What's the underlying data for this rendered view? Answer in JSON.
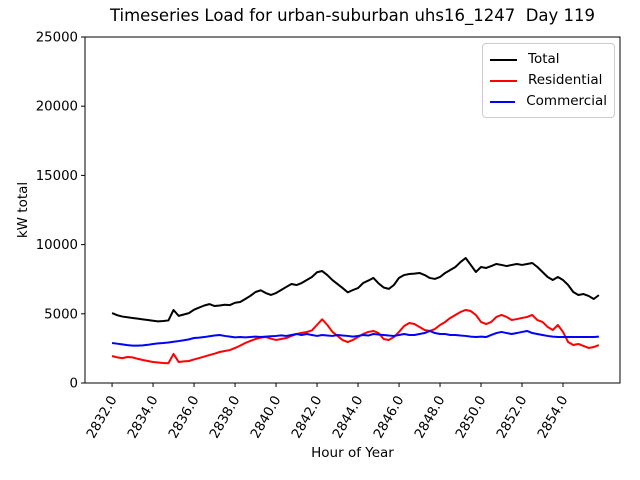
{
  "chart_data": {
    "type": "line",
    "title": "Timeseries Load for urban-suburban uhs16_1247  Day 119",
    "xlabel": "Hour of Year",
    "ylabel": "kW total",
    "xlim": [
      2830.68,
      2856.78
    ],
    "ylim": [
      0,
      25000
    ],
    "grid": false,
    "legend_position": "upper right",
    "xticks": [
      2832,
      2834,
      2836,
      2838,
      2840,
      2842,
      2844,
      2846,
      2848,
      2850,
      2852,
      2854
    ],
    "xtick_labels": [
      "2832.0",
      "2834.0",
      "2836.0",
      "2838.0",
      "2840.0",
      "2842.0",
      "2844.0",
      "2846.0",
      "2848.0",
      "2850.0",
      "2852.0",
      "2854.0"
    ],
    "xtick_rotation_deg": 60,
    "yticks": [
      0,
      5000,
      10000,
      15000,
      20000,
      25000
    ],
    "ytick_labels": [
      "0",
      "5000",
      "10000",
      "15000",
      "20000",
      "25000"
    ],
    "x": [
      2832.0,
      2832.25,
      2832.5,
      2832.75,
      2833.0,
      2833.25,
      2833.5,
      2833.75,
      2834.0,
      2834.25,
      2834.5,
      2834.75,
      2835.0,
      2835.25,
      2835.5,
      2835.75,
      2836.0,
      2836.25,
      2836.5,
      2836.75,
      2837.0,
      2837.25,
      2837.5,
      2837.75,
      2838.0,
      2838.25,
      2838.5,
      2838.75,
      2839.0,
      2839.25,
      2839.5,
      2839.75,
      2840.0,
      2840.25,
      2840.5,
      2840.75,
      2841.0,
      2841.25,
      2841.5,
      2841.75,
      2842.0,
      2842.25,
      2842.5,
      2842.75,
      2843.0,
      2843.25,
      2843.5,
      2843.75,
      2844.0,
      2844.25,
      2844.5,
      2844.75,
      2845.0,
      2845.25,
      2845.5,
      2845.75,
      2846.0,
      2846.25,
      2846.5,
      2846.75,
      2847.0,
      2847.25,
      2847.5,
      2847.75,
      2848.0,
      2848.25,
      2848.5,
      2848.75,
      2849.0,
      2849.25,
      2849.5,
      2849.75,
      2850.0,
      2850.25,
      2850.5,
      2850.75,
      2851.0,
      2851.25,
      2851.5,
      2851.75,
      2852.0,
      2852.25,
      2852.5,
      2852.75,
      2853.0,
      2853.25,
      2853.5,
      2853.75,
      2854.0,
      2854.25,
      2854.5,
      2854.75,
      2855.0,
      2855.25,
      2855.5,
      2855.75
    ],
    "series": [
      {
        "name": "Total",
        "color": "#000000",
        "values": [
          5050,
          4900,
          4800,
          4750,
          4700,
          4650,
          4600,
          4550,
          4500,
          4450,
          4480,
          4520,
          5275,
          4850,
          4950,
          5050,
          5300,
          5450,
          5600,
          5700,
          5560,
          5600,
          5650,
          5630,
          5800,
          5850,
          6070,
          6300,
          6575,
          6700,
          6500,
          6360,
          6500,
          6720,
          6940,
          7150,
          7080,
          7225,
          7440,
          7660,
          8000,
          8090,
          7800,
          7440,
          7150,
          6860,
          6550,
          6720,
          6860,
          7225,
          7400,
          7590,
          7200,
          6900,
          6800,
          7080,
          7600,
          7800,
          7875,
          7900,
          7950,
          7800,
          7590,
          7520,
          7660,
          7950,
          8165,
          8380,
          8740,
          9030,
          8530,
          8020,
          8380,
          8310,
          8450,
          8600,
          8530,
          8450,
          8530,
          8600,
          8530,
          8600,
          8670,
          8380,
          8020,
          7660,
          7440,
          7660,
          7440,
          7080,
          6575,
          6360,
          6430,
          6290,
          6070,
          6350
        ]
      },
      {
        "name": "Residential",
        "color": "#ff0000",
        "values": [
          1950,
          1850,
          1800,
          1880,
          1850,
          1750,
          1660,
          1590,
          1520,
          1480,
          1445,
          1430,
          2100,
          1520,
          1560,
          1590,
          1700,
          1800,
          1910,
          2020,
          2120,
          2240,
          2310,
          2380,
          2530,
          2700,
          2890,
          3040,
          3180,
          3280,
          3325,
          3200,
          3110,
          3180,
          3250,
          3400,
          3540,
          3620,
          3685,
          3800,
          4200,
          4600,
          4200,
          3700,
          3400,
          3100,
          2960,
          3110,
          3325,
          3540,
          3690,
          3760,
          3613,
          3180,
          3110,
          3320,
          3690,
          4120,
          4335,
          4260,
          4050,
          3830,
          3760,
          3900,
          4190,
          4410,
          4700,
          4915,
          5130,
          5275,
          5200,
          4915,
          4410,
          4260,
          4410,
          4770,
          4915,
          4770,
          4550,
          4620,
          4700,
          4770,
          4915,
          4550,
          4410,
          4050,
          3830,
          4190,
          3690,
          2960,
          2745,
          2820,
          2675,
          2530,
          2600,
          2745
        ]
      },
      {
        "name": "Commercial",
        "color": "#0000ff",
        "values": [
          2890,
          2840,
          2790,
          2740,
          2700,
          2700,
          2720,
          2760,
          2820,
          2860,
          2890,
          2930,
          2980,
          3030,
          3090,
          3150,
          3250,
          3280,
          3320,
          3380,
          3430,
          3470,
          3400,
          3350,
          3300,
          3320,
          3300,
          3320,
          3350,
          3320,
          3350,
          3380,
          3400,
          3440,
          3400,
          3470,
          3540,
          3470,
          3540,
          3470,
          3400,
          3470,
          3430,
          3400,
          3470,
          3430,
          3400,
          3350,
          3400,
          3470,
          3430,
          3540,
          3500,
          3470,
          3430,
          3400,
          3470,
          3540,
          3470,
          3470,
          3540,
          3610,
          3760,
          3610,
          3540,
          3540,
          3470,
          3470,
          3430,
          3400,
          3350,
          3320,
          3350,
          3320,
          3470,
          3610,
          3690,
          3610,
          3540,
          3610,
          3690,
          3760,
          3610,
          3540,
          3470,
          3400,
          3350,
          3320,
          3320,
          3320,
          3320,
          3320,
          3320,
          3320,
          3320,
          3350
        ]
      }
    ]
  }
}
